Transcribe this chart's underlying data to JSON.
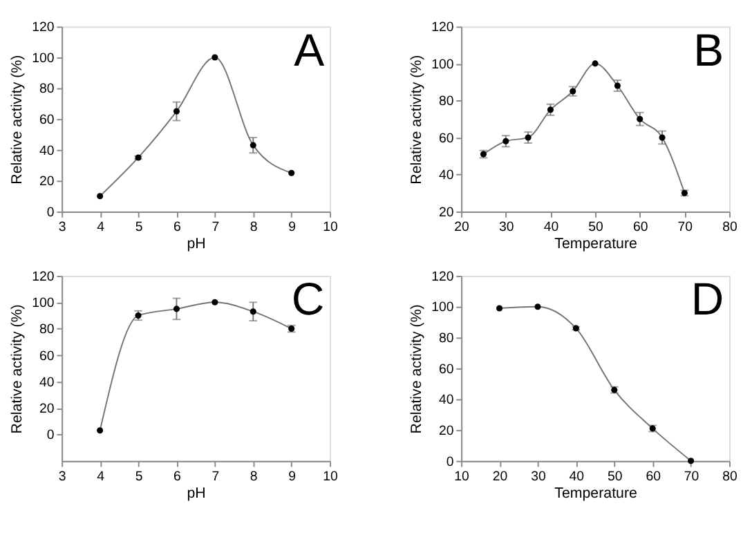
{
  "chart_data": [
    {
      "type": "line",
      "title": "A",
      "xlabel": "pH",
      "ylabel": "Relative activity (%)",
      "x": [
        4,
        5,
        6,
        7,
        8,
        9
      ],
      "xlim": [
        3,
        10
      ],
      "xticks": [
        3,
        4,
        5,
        6,
        7,
        8,
        9,
        10
      ],
      "ylim": [
        0,
        120
      ],
      "yticks": [
        0,
        20,
        40,
        60,
        80,
        100,
        120
      ],
      "marker": "circle",
      "line_style": "solid",
      "grid": false,
      "series": [
        {
          "color": "#000000",
          "values": [
            10,
            35,
            65,
            100,
            43,
            25
          ],
          "errors": [
            null,
            1,
            6,
            null,
            5,
            null
          ]
        }
      ]
    },
    {
      "type": "line",
      "title": "B",
      "xlabel": "Temperature",
      "ylabel": "Relative activity (%)",
      "x": [
        25,
        30,
        35,
        40,
        45,
        50,
        55,
        60,
        65,
        70
      ],
      "xlim": [
        20,
        80
      ],
      "xticks": [
        20,
        30,
        40,
        50,
        60,
        70,
        80
      ],
      "ylim": [
        20,
        120
      ],
      "yticks": [
        20,
        40,
        60,
        80,
        100,
        120
      ],
      "marker": "circle",
      "line_style": "solid",
      "grid": false,
      "series": [
        {
          "color": "#000000",
          "values": [
            51,
            58,
            60,
            75,
            85,
            100,
            88,
            70,
            60,
            30
          ],
          "errors": [
            2,
            3,
            3,
            3,
            2.5,
            null,
            3,
            3.5,
            3.5,
            1.5
          ]
        }
      ]
    },
    {
      "type": "line",
      "title": "C",
      "xlabel": "pH",
      "ylabel": "Relative activity (%)",
      "x": [
        4,
        5,
        6,
        7,
        8,
        9
      ],
      "xlim": [
        3,
        10
      ],
      "xticks": [
        3,
        4,
        5,
        6,
        7,
        8,
        9,
        10
      ],
      "ylim": [
        -20,
        120
      ],
      "yticks": [
        0,
        20,
        40,
        60,
        80,
        100,
        120
      ],
      "marker": "circle",
      "line_style": "solid",
      "grid": false,
      "series": [
        {
          "color": "#000000",
          "values": [
            3,
            90,
            95,
            100,
            93,
            80
          ],
          "errors": [
            null,
            3.5,
            8,
            null,
            7,
            2.5
          ]
        }
      ]
    },
    {
      "type": "line",
      "title": "D",
      "xlabel": "Temperature",
      "ylabel": "Relative activity (%)",
      "x": [
        20,
        30,
        40,
        50,
        60,
        70
      ],
      "xlim": [
        10,
        80
      ],
      "xticks": [
        10,
        20,
        30,
        40,
        50,
        60,
        70,
        80
      ],
      "ylim": [
        0,
        120
      ],
      "yticks": [
        0,
        20,
        40,
        60,
        80,
        100,
        120
      ],
      "marker": "circle",
      "line_style": "solid",
      "grid": false,
      "series": [
        {
          "color": "#000000",
          "values": [
            99,
            100,
            86,
            46,
            21,
            0
          ],
          "errors": [
            null,
            null,
            1,
            2,
            2,
            null
          ]
        }
      ]
    }
  ]
}
